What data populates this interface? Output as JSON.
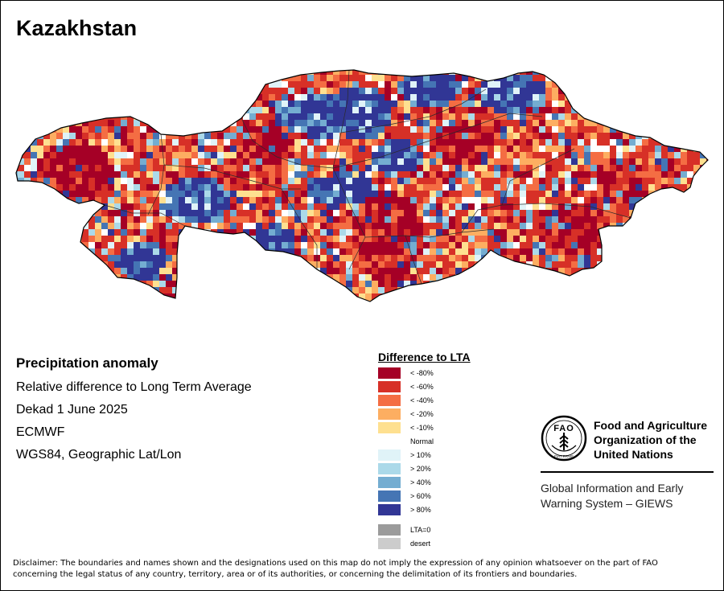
{
  "title": "Kazakhstan",
  "info": {
    "heading": "Precipitation anomaly",
    "subtitle": "Relative difference to Long Term Average",
    "period": "Dekad 1 June 2025",
    "source": "ECMWF",
    "projection": "WGS84, Geographic Lat/Lon"
  },
  "legend": {
    "title": "Difference to LTA",
    "items": [
      {
        "label": "< -80%",
        "color": "#a50026"
      },
      {
        "label": "< -60%",
        "color": "#d73027"
      },
      {
        "label": "< -40%",
        "color": "#f46d43"
      },
      {
        "label": "< -20%",
        "color": "#fdae61"
      },
      {
        "label": "< -10%",
        "color": "#fee090"
      },
      {
        "label": "Normal",
        "color": "#ffffff"
      },
      {
        "label": "> 10%",
        "color": "#e0f3f8"
      },
      {
        "label": "> 20%",
        "color": "#abd9e9"
      },
      {
        "label": "> 40%",
        "color": "#74add1"
      },
      {
        "label": "> 60%",
        "color": "#4575b4"
      },
      {
        "label": "> 80%",
        "color": "#313695"
      }
    ],
    "extra": [
      {
        "label": "LTA=0",
        "color": "#9b9b9b"
      },
      {
        "label": "desert",
        "color": "#cccccc"
      }
    ]
  },
  "fao": {
    "emblem_text": "FAO",
    "emblem_motto": "FIAT PANIS",
    "org_name_1": "Food and Agriculture",
    "org_name_2": "Organization of the",
    "org_name_3": "United Nations",
    "giews_1": "Global Information and Early",
    "giews_2": "Warning System – GIEWS"
  },
  "disclaimer_1": "Disclaimer: The boundaries and names shown and the designations used on this map do not imply the expression of any opinion whatsoever on the part of FAO",
  "disclaimer_2": "concerning the legal status of any country, territory, area or of its authorities, or concerning the delimitation of its frontiers and boundaries."
}
